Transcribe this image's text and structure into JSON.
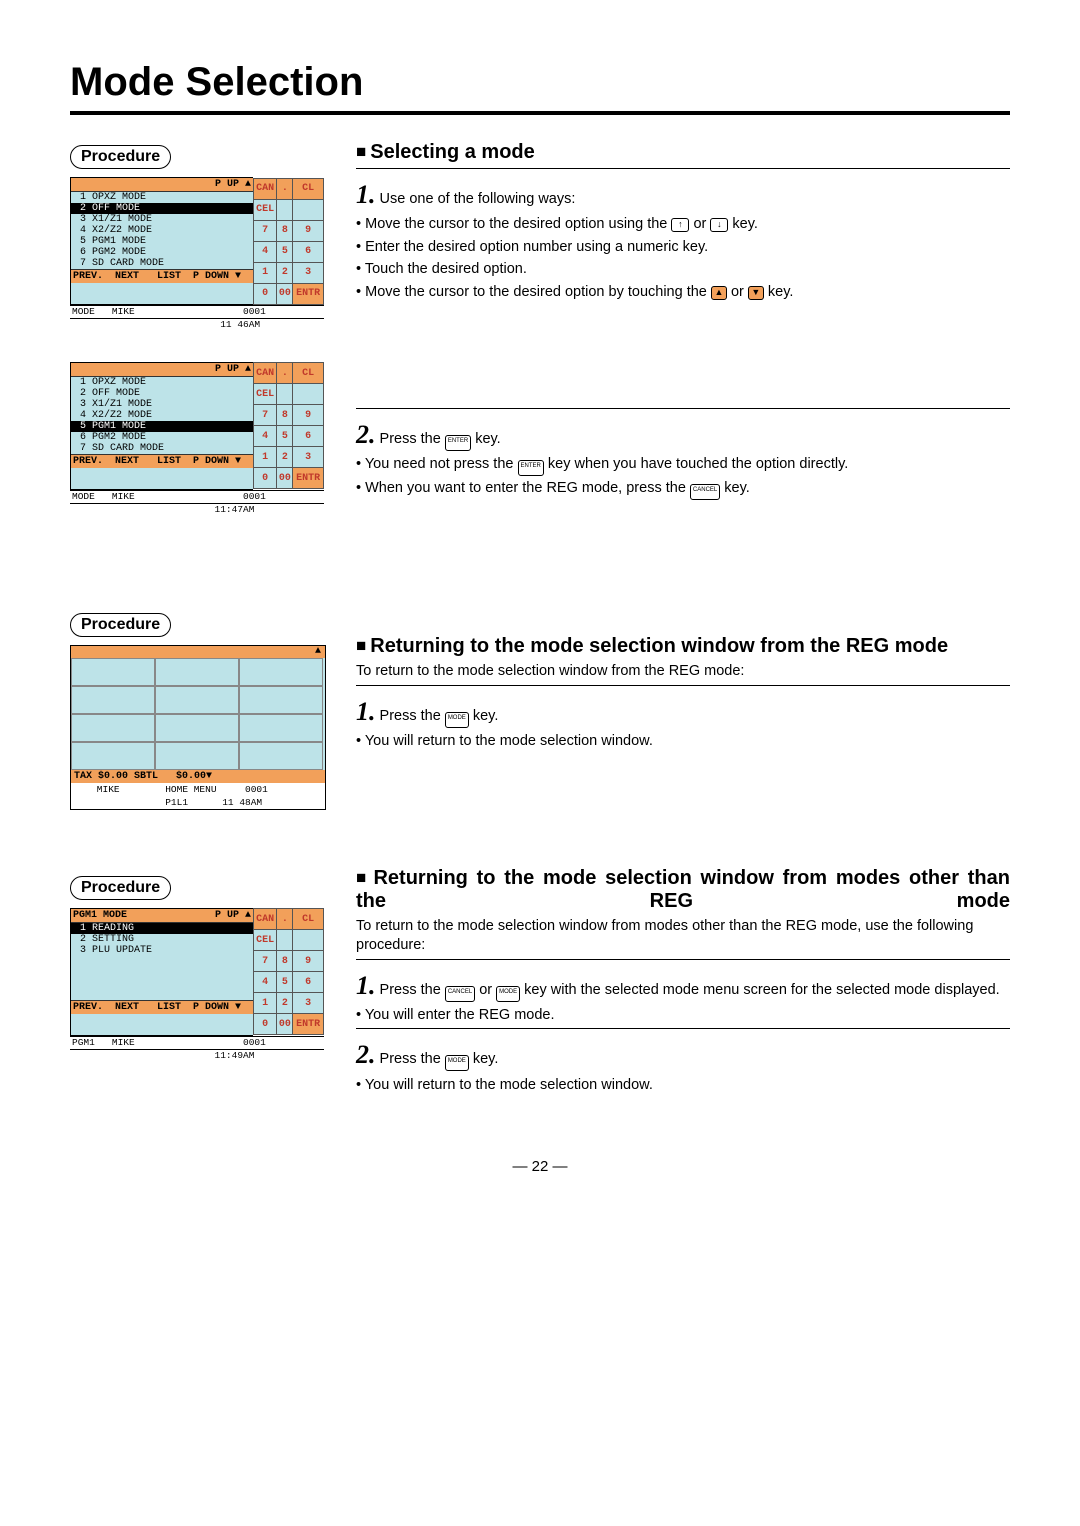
{
  "page": {
    "title": "Mode Selection",
    "number": "22"
  },
  "procedure_label": "Procedure",
  "colors": {
    "orange": "#f2a05a",
    "cyan": "#bde3e8",
    "red_text": "#c0392b"
  },
  "screenshot1": {
    "header": "P UP  ▲",
    "items": [
      "1 OPXZ MODE",
      "2 OFF MODE",
      "3 X1/Z1 MODE",
      "4 X2/Z2 MODE",
      "5 PGM1 MODE",
      "6 PGM2 MODE",
      "7 SD CARD MODE"
    ],
    "selected_index": 1,
    "footer": "PREV.  NEXT   LIST  P DOWN ▼",
    "status1": "MODE   MIKE                   0001",
    "status2": "                          11 46AM",
    "keypad": [
      [
        "CAN",
        ".",
        "CL"
      ],
      [
        "CEL",
        "",
        ""
      ],
      [
        "7",
        "8",
        "9"
      ],
      [
        "4",
        "5",
        "6"
      ],
      [
        "1",
        "2",
        "3"
      ],
      [
        "0",
        "00",
        "ENTR"
      ]
    ]
  },
  "screenshot2": {
    "header": "P UP  ▲",
    "items": [
      "1 OPXZ MODE",
      "2 OFF MODE",
      "3 X1/Z1 MODE",
      "4 X2/Z2 MODE",
      "5 PGM1 MODE",
      "6 PGM2 MODE",
      "7 SD CARD MODE"
    ],
    "selected_index": 4,
    "footer": "PREV.  NEXT   LIST  P DOWN ▼",
    "status1": "MODE   MIKE                   0001",
    "status2": "                         11:47AM"
  },
  "screenshot3": {
    "top": "▲",
    "tax": "TAX $0.00 SBTL   $0.00▼",
    "status1": "    MIKE        HOME MENU     0001",
    "status2": "                P1L1      11 48AM"
  },
  "screenshot4": {
    "title": "PGM1 MODE",
    "header": "P UP  ▲",
    "items": [
      "1 READING",
      "2 SETTING",
      "3 PLU UPDATE"
    ],
    "selected_index": 0,
    "footer": "PREV.  NEXT   LIST  P DOWN ▼",
    "status1": "PGM1   MIKE                   0001",
    "status2": "                         11:49AM"
  },
  "section1": {
    "heading": "Selecting a mode",
    "step1_lead": "Use one of the following ways:",
    "b1a": "Move the cursor to the desired option using the",
    "b1b": "or",
    "b1c": "key.",
    "b2": "Enter the desired option number using a numeric key.",
    "b3": "Touch the desired option.",
    "b4a": "Move the cursor to the desired option by touching the",
    "b4b": "or",
    "b4c": "key.",
    "step2_lead_a": "Press the",
    "step2_lead_b": "key.",
    "s2b1a": "You need not press the",
    "s2b1b": "key when you have touched the option directly.",
    "s2b2a": "When you want to enter the REG mode, press the",
    "s2b2b": "key."
  },
  "section2": {
    "heading": "Returning to the mode selection window from the REG mode",
    "intro": "To return to the mode selection window from the REG mode:",
    "step1a": "Press the",
    "step1b": "key.",
    "b1": "You will return to the mode selection window."
  },
  "section3": {
    "heading": "Returning to the mode selection window from modes other than the REG mode",
    "intro": "To return to the mode selection window from modes other than the REG mode, use the following procedure:",
    "step1a": "Press the",
    "step1b": "or",
    "step1c": "key with the selected mode menu screen for the selected mode displayed.",
    "b1": "You will enter the REG mode.",
    "step2a": "Press the",
    "step2b": "key.",
    "b2": "You will return to the mode selection window."
  },
  "keys": {
    "up": "↑",
    "down": "↓",
    "tri_up": "▲",
    "tri_down": "▼",
    "enter": "ENTER",
    "cancel": "CANCEL",
    "mode": "MODE"
  }
}
